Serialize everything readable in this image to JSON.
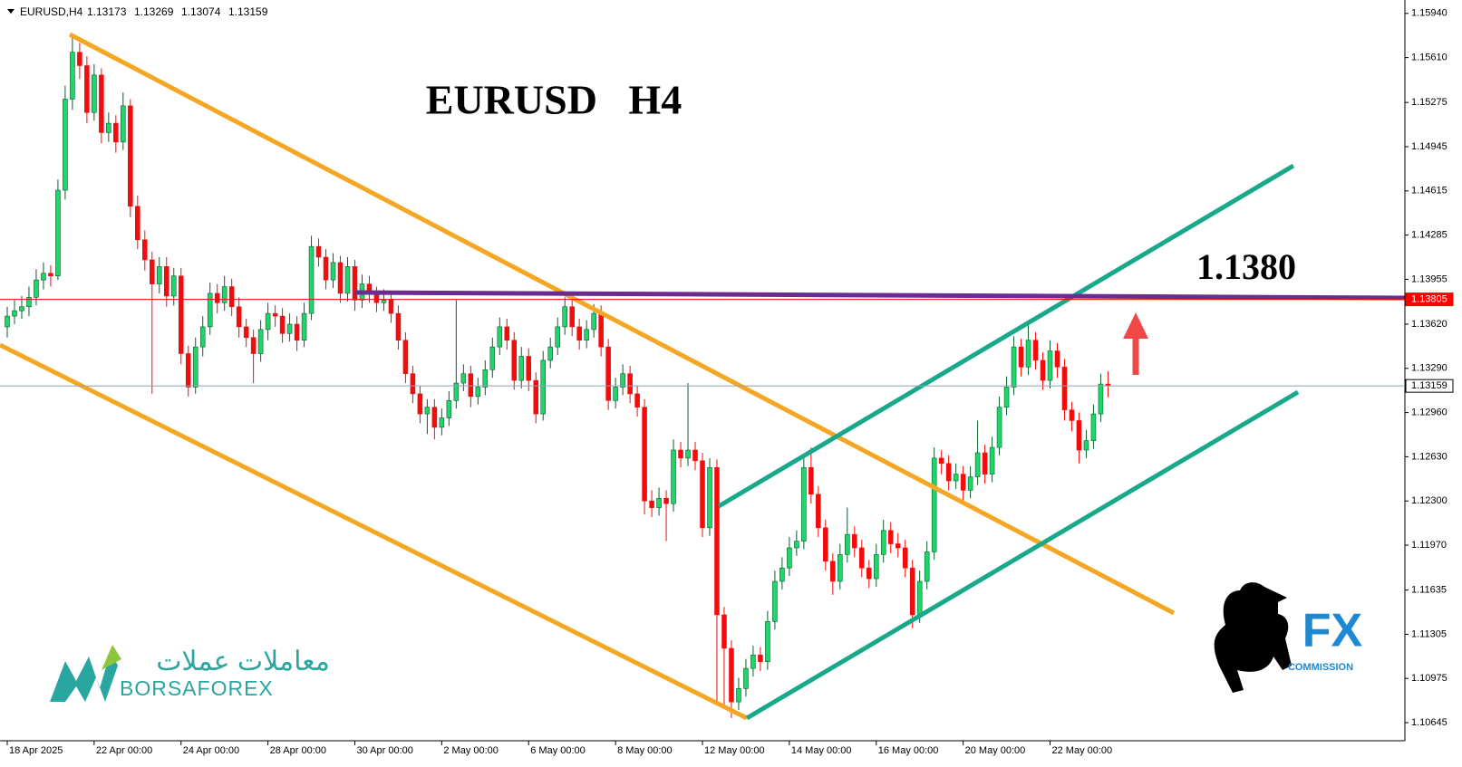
{
  "chart_data": {
    "type": "candlestick",
    "symbol": "EURUSD,H4",
    "title": "EURUSD   H4",
    "annotation": "1.1380",
    "logo_left": {
      "arabic": "معاملات عملات",
      "latin": "BORSAFOREX"
    },
    "logo_right": {
      "mark": "FX",
      "text": "COMMISSION"
    },
    "bull_color": "#1fd66a",
    "bear_color": "#f20c0c",
    "xlim": [
      -1,
      193
    ],
    "ylim": [
      1.1051,
      1.1604
    ],
    "yticks": [
      {
        "value": 1.1594,
        "label": "1.15940"
      },
      {
        "value": 1.1561,
        "label": "1.15610"
      },
      1.15275,
      1.14945,
      1.14615,
      1.14285,
      1.13955,
      {
        "value": 1.1362,
        "label": "1.13620"
      },
      {
        "value": 1.1329,
        "label": "1.13290"
      },
      {
        "value": 1.1296,
        "label": "1.12960"
      },
      {
        "value": 1.1263,
        "label": "1.12630"
      },
      {
        "value": 1.123,
        "label": "1.12300"
      },
      {
        "value": 1.1197,
        "label": "1.11970"
      },
      1.11635,
      1.11305,
      1.10975,
      1.10645
    ],
    "xticks": [
      {
        "value": 0,
        "label": "18 Apr 2025"
      },
      {
        "value": 12,
        "label": "22 Apr 00:00"
      },
      {
        "value": 24,
        "label": "24 Apr 00:00"
      },
      {
        "value": 36,
        "label": "28 Apr 00:00"
      },
      {
        "value": 48,
        "label": "30 Apr 00:00"
      },
      {
        "value": 60,
        "label": "2 May 00:00"
      },
      {
        "value": 72,
        "label": "6 May 00:00"
      },
      {
        "value": 84,
        "label": "8 May 00:00"
      },
      {
        "value": 96,
        "label": "12 May 00:00"
      },
      {
        "value": 108,
        "label": "14 May 00:00"
      },
      {
        "value": 120,
        "label": "16 May 00:00"
      },
      {
        "value": 132,
        "label": "20 May 00:00"
      },
      {
        "value": 144,
        "label": "22 May 00:00"
      }
    ],
    "price_lines": [
      {
        "value": 1.13805,
        "color": "#ff0000"
      },
      {
        "value": 1.13159,
        "color": "#8aa0b0"
      }
    ],
    "ohlc": [
      [
        1.136,
        1.1375,
        1.1352,
        1.1368
      ],
      [
        1.1368,
        1.138,
        1.1362,
        1.1372
      ],
      [
        1.1372,
        1.1383,
        1.1366,
        1.1375
      ],
      [
        1.1375,
        1.139,
        1.1368,
        1.1382
      ],
      [
        1.1382,
        1.1403,
        1.1376,
        1.1395
      ],
      [
        1.1395,
        1.1408,
        1.1388,
        1.14
      ],
      [
        1.14,
        1.1406,
        1.139,
        1.1398
      ],
      [
        1.1398,
        1.147,
        1.1395,
        1.1462
      ],
      [
        1.1462,
        1.154,
        1.1455,
        1.153
      ],
      [
        1.153,
        1.1577,
        1.1522,
        1.1565
      ],
      [
        1.1565,
        1.1572,
        1.1545,
        1.1555
      ],
      [
        1.1555,
        1.1562,
        1.1512,
        1.152
      ],
      [
        1.152,
        1.1556,
        1.1514,
        1.1548
      ],
      [
        1.1548,
        1.1553,
        1.1497,
        1.1505
      ],
      [
        1.1505,
        1.152,
        1.1498,
        1.1512
      ],
      [
        1.1512,
        1.1518,
        1.149,
        1.1498
      ],
      [
        1.1498,
        1.1535,
        1.1492,
        1.1525
      ],
      [
        1.1525,
        1.153,
        1.1442,
        1.145
      ],
      [
        1.145,
        1.1458,
        1.1418,
        1.1425
      ],
      [
        1.1425,
        1.1432,
        1.1402,
        1.141
      ],
      [
        1.141,
        1.1416,
        1.131,
        1.1392
      ],
      [
        1.1392,
        1.1412,
        1.1385,
        1.1405
      ],
      [
        1.1405,
        1.1412,
        1.1375,
        1.1383
      ],
      [
        1.1383,
        1.1404,
        1.1376,
        1.1398
      ],
      [
        1.1398,
        1.1404,
        1.1332,
        1.134
      ],
      [
        1.134,
        1.1346,
        1.1308,
        1.1315
      ],
      [
        1.1315,
        1.1352,
        1.131,
        1.1345
      ],
      [
        1.1345,
        1.1368,
        1.1338,
        1.136
      ],
      [
        1.136,
        1.1393,
        1.1354,
        1.1385
      ],
      [
        1.1385,
        1.1392,
        1.137,
        1.1378
      ],
      [
        1.1378,
        1.1398,
        1.1372,
        1.139
      ],
      [
        1.139,
        1.1396,
        1.1368,
        1.1375
      ],
      [
        1.1375,
        1.1382,
        1.1352,
        1.136
      ],
      [
        1.136,
        1.1366,
        1.1345,
        1.1352
      ],
      [
        1.1352,
        1.1358,
        1.1318,
        1.134
      ],
      [
        1.134,
        1.1365,
        1.1334,
        1.1358
      ],
      [
        1.1358,
        1.1378,
        1.135,
        1.137
      ],
      [
        1.137,
        1.1376,
        1.136,
        1.1368
      ],
      [
        1.1368,
        1.1374,
        1.1348,
        1.1355
      ],
      [
        1.1355,
        1.137,
        1.1349,
        1.1362
      ],
      [
        1.1362,
        1.1368,
        1.1342,
        1.135
      ],
      [
        1.135,
        1.1378,
        1.1345,
        1.137
      ],
      [
        1.137,
        1.1428,
        1.1365,
        1.142
      ],
      [
        1.142,
        1.1426,
        1.1405,
        1.1412
      ],
      [
        1.1412,
        1.1418,
        1.1388,
        1.1395
      ],
      [
        1.1395,
        1.1415,
        1.1389,
        1.1408
      ],
      [
        1.1408,
        1.1413,
        1.1378,
        1.1385
      ],
      [
        1.1385,
        1.1412,
        1.1379,
        1.1405
      ],
      [
        1.1405,
        1.141,
        1.1372,
        1.138
      ],
      [
        1.138,
        1.1399,
        1.1374,
        1.1392
      ],
      [
        1.1392,
        1.1398,
        1.1378,
        1.1385
      ],
      [
        1.1385,
        1.139,
        1.1371,
        1.1378
      ],
      [
        1.1378,
        1.1388,
        1.1372,
        1.138
      ],
      [
        1.138,
        1.1386,
        1.1363,
        1.137
      ],
      [
        1.137,
        1.1376,
        1.1343,
        1.135
      ],
      [
        1.135,
        1.1356,
        1.1318,
        1.1325
      ],
      [
        1.1325,
        1.1331,
        1.1303,
        1.131
      ],
      [
        1.131,
        1.1316,
        1.1288,
        1.1295
      ],
      [
        1.1295,
        1.1306,
        1.128,
        1.13
      ],
      [
        1.13,
        1.1306,
        1.1276,
        1.1285
      ],
      [
        1.1285,
        1.1299,
        1.1279,
        1.1292
      ],
      [
        1.1292,
        1.1312,
        1.1286,
        1.1305
      ],
      [
        1.1305,
        1.138,
        1.1299,
        1.1318
      ],
      [
        1.1318,
        1.1332,
        1.1312,
        1.1325
      ],
      [
        1.1325,
        1.1331,
        1.13,
        1.1308
      ],
      [
        1.1308,
        1.1322,
        1.1302,
        1.1315
      ],
      [
        1.1315,
        1.1335,
        1.1309,
        1.1328
      ],
      [
        1.1328,
        1.1352,
        1.1322,
        1.1345
      ],
      [
        1.1345,
        1.1367,
        1.1339,
        1.136
      ],
      [
        1.136,
        1.1366,
        1.1343,
        1.135
      ],
      [
        1.135,
        1.1356,
        1.1313,
        1.132
      ],
      [
        1.132,
        1.1345,
        1.1314,
        1.1338
      ],
      [
        1.1338,
        1.1344,
        1.1312,
        1.132
      ],
      [
        1.132,
        1.1326,
        1.1288,
        1.1295
      ],
      [
        1.1295,
        1.1342,
        1.129,
        1.1335
      ],
      [
        1.1335,
        1.1352,
        1.1329,
        1.1345
      ],
      [
        1.1345,
        1.1367,
        1.1339,
        1.136
      ],
      [
        1.136,
        1.1382,
        1.1354,
        1.1375
      ],
      [
        1.1375,
        1.138,
        1.1353,
        1.136
      ],
      [
        1.136,
        1.1366,
        1.1343,
        1.135
      ],
      [
        1.135,
        1.1365,
        1.1344,
        1.1358
      ],
      [
        1.1358,
        1.1377,
        1.1352,
        1.137
      ],
      [
        1.137,
        1.1376,
        1.1338,
        1.1345
      ],
      [
        1.1345,
        1.1351,
        1.1298,
        1.1305
      ],
      [
        1.1305,
        1.1322,
        1.1299,
        1.1315
      ],
      [
        1.1315,
        1.1332,
        1.1309,
        1.1325
      ],
      [
        1.1325,
        1.1331,
        1.1303,
        1.131
      ],
      [
        1.131,
        1.1316,
        1.1293,
        1.13
      ],
      [
        1.13,
        1.1306,
        1.122,
        1.123
      ],
      [
        1.123,
        1.1238,
        1.1218,
        1.1225
      ],
      [
        1.1225,
        1.124,
        1.1219,
        1.1232
      ],
      [
        1.1232,
        1.1238,
        1.12,
        1.1228
      ],
      [
        1.1228,
        1.1276,
        1.1222,
        1.1268
      ],
      [
        1.1268,
        1.1274,
        1.1255,
        1.1262
      ],
      [
        1.1262,
        1.1318,
        1.1256,
        1.1268
      ],
      [
        1.1268,
        1.1274,
        1.1253,
        1.126
      ],
      [
        1.126,
        1.1266,
        1.1203,
        1.121
      ],
      [
        1.121,
        1.1262,
        1.1204,
        1.1255
      ],
      [
        1.1255,
        1.1261,
        1.108,
        1.1145
      ],
      [
        1.1145,
        1.1151,
        1.1075,
        1.112
      ],
      [
        1.112,
        1.1126,
        1.1068,
        1.108
      ],
      [
        1.108,
        1.1098,
        1.1074,
        1.109
      ],
      [
        1.109,
        1.1112,
        1.1084,
        1.1105
      ],
      [
        1.1105,
        1.1122,
        1.1099,
        1.1115
      ],
      [
        1.1115,
        1.1121,
        1.1103,
        1.111
      ],
      [
        1.111,
        1.1148,
        1.1104,
        1.114
      ],
      [
        1.114,
        1.1178,
        1.1134,
        1.117
      ],
      [
        1.117,
        1.1188,
        1.1164,
        1.118
      ],
      [
        1.118,
        1.1203,
        1.1174,
        1.1195
      ],
      [
        1.1195,
        1.1208,
        1.1189,
        1.12
      ],
      [
        1.12,
        1.1263,
        1.1194,
        1.1255
      ],
      [
        1.1255,
        1.127,
        1.1228,
        1.1235
      ],
      [
        1.1235,
        1.1241,
        1.1203,
        1.121
      ],
      [
        1.121,
        1.1216,
        1.1178,
        1.1185
      ],
      [
        1.1185,
        1.1191,
        1.116,
        1.117
      ],
      [
        1.117,
        1.1198,
        1.1164,
        1.119
      ],
      [
        1.119,
        1.1225,
        1.1184,
        1.1205
      ],
      [
        1.1205,
        1.1211,
        1.1188,
        1.1195
      ],
      [
        1.1195,
        1.1201,
        1.1173,
        1.118
      ],
      [
        1.118,
        1.1186,
        1.1165,
        1.1172
      ],
      [
        1.1172,
        1.1198,
        1.1166,
        1.119
      ],
      [
        1.119,
        1.1216,
        1.1184,
        1.1208
      ],
      [
        1.1208,
        1.1214,
        1.1191,
        1.1198
      ],
      [
        1.1198,
        1.1206,
        1.1188,
        1.1195
      ],
      [
        1.1195,
        1.1201,
        1.1173,
        1.118
      ],
      [
        1.118,
        1.1186,
        1.1135,
        1.1145
      ],
      [
        1.1145,
        1.1178,
        1.1139,
        1.117
      ],
      [
        1.117,
        1.12,
        1.1164,
        1.1192
      ],
      [
        1.1192,
        1.127,
        1.1186,
        1.1262
      ],
      [
        1.1262,
        1.1268,
        1.125,
        1.1258
      ],
      [
        1.1258,
        1.1264,
        1.1238,
        1.1245
      ],
      [
        1.1245,
        1.1258,
        1.1239,
        1.125
      ],
      [
        1.125,
        1.1256,
        1.123,
        1.1238
      ],
      [
        1.1238,
        1.1256,
        1.1232,
        1.1248
      ],
      [
        1.1248,
        1.129,
        1.1242,
        1.1266
      ],
      [
        1.1266,
        1.1272,
        1.1243,
        1.125
      ],
      [
        1.125,
        1.1278,
        1.1244,
        1.127
      ],
      [
        1.127,
        1.1308,
        1.1264,
        1.13
      ],
      [
        1.13,
        1.1323,
        1.1294,
        1.1315
      ],
      [
        1.1315,
        1.1353,
        1.1309,
        1.1345
      ],
      [
        1.1345,
        1.1351,
        1.1323,
        1.133
      ],
      [
        1.133,
        1.1362,
        1.1324,
        1.135
      ],
      [
        1.135,
        1.1356,
        1.1328,
        1.1335
      ],
      [
        1.1335,
        1.1341,
        1.1313,
        1.132
      ],
      [
        1.132,
        1.135,
        1.1314,
        1.1342
      ],
      [
        1.1342,
        1.1348,
        1.1322,
        1.133
      ],
      [
        1.133,
        1.1336,
        1.129,
        1.1298
      ],
      [
        1.1298,
        1.1304,
        1.1282,
        1.129
      ],
      [
        1.129,
        1.1296,
        1.1258,
        1.1268
      ],
      [
        1.1268,
        1.1283,
        1.1262,
        1.1275
      ],
      [
        1.1275,
        1.1302,
        1.1269,
        1.1295
      ],
      [
        1.1295,
        1.1325,
        1.1289,
        1.13173
      ],
      [
        1.13173,
        1.13269,
        1.13074,
        1.13159
      ]
    ]
  }
}
